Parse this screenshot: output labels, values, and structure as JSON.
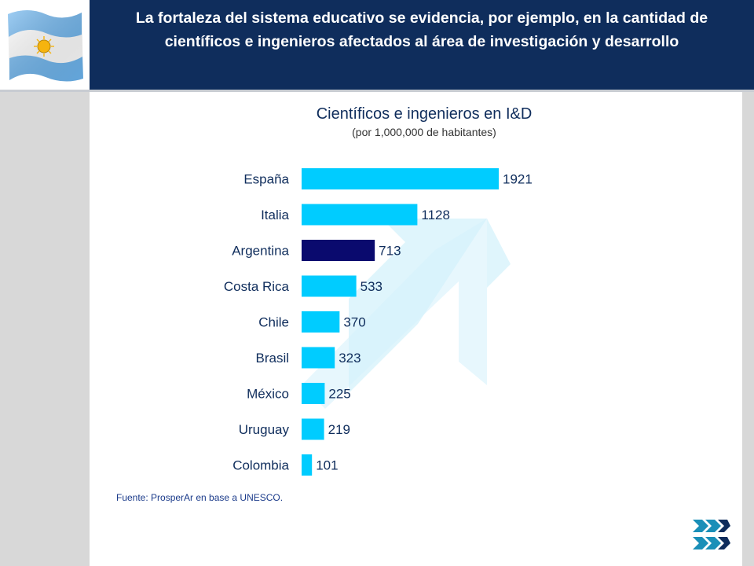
{
  "header": {
    "title": "La fortaleza del sistema educativo se evidencia, por ejemplo, en la cantidad de científicos e ingenieros afectados al área de investigación y desarrollo"
  },
  "colors": {
    "header_bg": "#0f2d5c",
    "bar": "#00ccff",
    "bar_highlight": "#0a0a6e",
    "arrow": "#d4f1fb"
  },
  "icons": {
    "flag": "argentina-flag-icon",
    "logo": "prosperar-logo-icon"
  },
  "chart_data": {
    "type": "bar",
    "orientation": "horizontal",
    "title": "Científicos e ingenieros en I&D",
    "subtitle": "(por 1,000,000 de habitantes)",
    "categories": [
      "España",
      "Italia",
      "Argentina",
      "Costa Rica",
      "Chile",
      "Brasil",
      "México",
      "Uruguay",
      "Colombia"
    ],
    "values": [
      1921,
      1128,
      713,
      533,
      370,
      323,
      225,
      219,
      101
    ],
    "highlight": "Argentina",
    "data_labels": true,
    "xlim": [
      0,
      1921
    ],
    "grid": false,
    "legend": "none"
  },
  "source": "Fuente: ProsperAr en base a UNESCO."
}
